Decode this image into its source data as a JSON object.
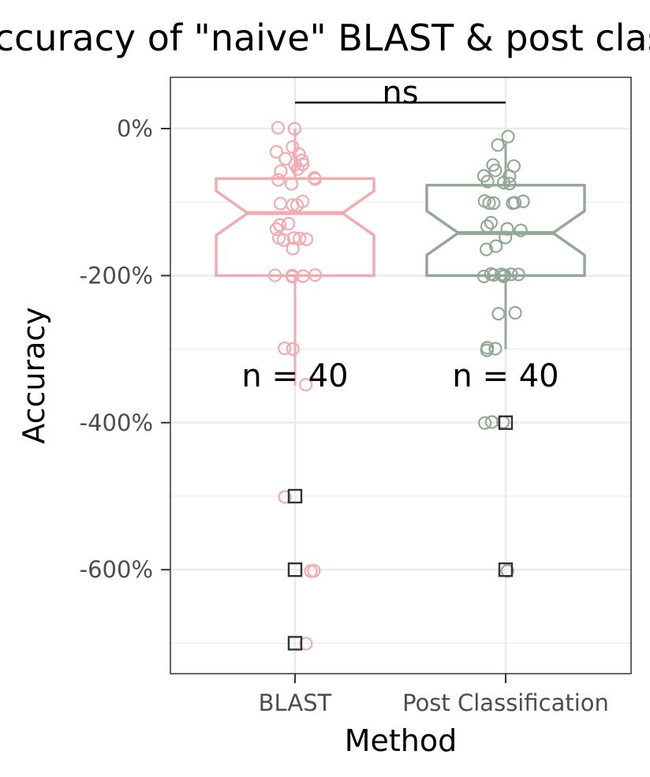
{
  "chart_data": {
    "type": "box",
    "title": "Accuracy of \"naive\" BLAST & post classification",
    "xlabel": "Method",
    "ylabel": "Accuracy",
    "categories": [
      "BLAST",
      "Post Classification"
    ],
    "ylim": [
      -7.4,
      0.7
    ],
    "y_ticks": [
      0,
      -2,
      -4,
      -6
    ],
    "y_tick_labels": [
      "0%",
      "-200%",
      "-400%",
      "-600%"
    ],
    "notched": true,
    "grid": true,
    "colors": {
      "BLAST": "#f4aab0",
      "Post Classification": "#93a897",
      "outlier": "#333333"
    },
    "series": [
      {
        "name": "BLAST",
        "box": {
          "lower_whisker": -3.5,
          "q1": -2.0,
          "median": -1.15,
          "q3": -0.68,
          "upper_whisker": 0.0,
          "notch_low": -1.45,
          "notch_high": -0.85
        },
        "points": [
          0,
          0,
          -0.25,
          -0.3,
          -0.35,
          -0.4,
          -0.45,
          -0.5,
          -0.5,
          -0.55,
          -0.6,
          -0.65,
          -0.7,
          -0.7,
          -0.75,
          -1.0,
          -1.0,
          -1.05,
          -1.05,
          -1.3,
          -1.3,
          -1.35,
          -1.5,
          -1.5,
          -1.5,
          -1.5,
          -1.5,
          -1.65,
          -2.0,
          -2.0,
          -2.0,
          -2.0,
          -2.0,
          -3.0,
          -3.0,
          -3.5,
          -5.0,
          -6.0,
          -6.0,
          -7.0
        ],
        "outliers": [
          -5.0,
          -6.0,
          -7.0
        ],
        "n_label": "n = 40"
      },
      {
        "name": "Post Classification",
        "box": {
          "lower_whisker": -3.0,
          "q1": -2.0,
          "median": -1.42,
          "q3": -0.77,
          "upper_whisker": -0.2,
          "notch_low": -1.72,
          "notch_high": -1.12
        },
        "points": [
          -0.13,
          -0.23,
          -0.5,
          -0.5,
          -0.55,
          -0.65,
          -0.65,
          -0.7,
          -0.72,
          -0.75,
          -1.0,
          -1.0,
          -1.0,
          -1.0,
          -1.0,
          -1.0,
          -1.3,
          -1.35,
          -1.35,
          -1.4,
          -1.5,
          -1.6,
          -1.65,
          -2.0,
          -2.0,
          -2.0,
          -2.0,
          -2.0,
          -2.0,
          -2.0,
          -2.0,
          -2.5,
          -2.5,
          -3.0,
          -3.0,
          -3.0,
          -4.0,
          -4.0,
          -4.0,
          -6.0
        ],
        "outliers": [
          -4.0,
          -6.0
        ],
        "n_label": "n = 40"
      }
    ],
    "comparison": {
      "label": "ns",
      "groups": [
        "BLAST",
        "Post Classification"
      ]
    }
  }
}
